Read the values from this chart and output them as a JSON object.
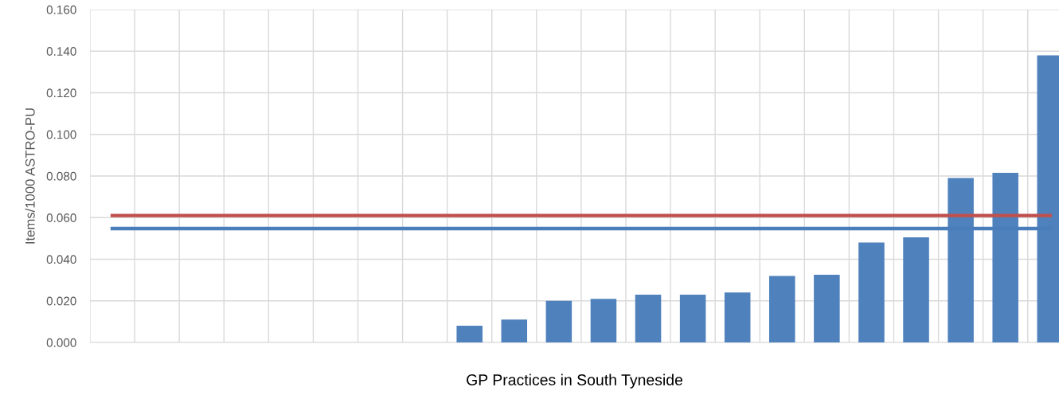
{
  "chart_data": {
    "type": "bar",
    "xlabel": "GP Practices in South Tyneside",
    "ylabel": "Items/1000 ASTRO-PU",
    "categories": [
      null,
      null,
      null,
      null,
      null,
      null,
      null,
      null,
      null,
      null,
      null,
      null,
      null,
      null,
      null,
      null,
      null,
      null,
      null,
      null,
      null,
      null
    ],
    "values": [
      null,
      null,
      null,
      null,
      null,
      null,
      null,
      null,
      0.008,
      0.011,
      0.02,
      0.021,
      0.023,
      0.023,
      0.024,
      0.032,
      0.0325,
      0.048,
      0.0505,
      0.079,
      0.0815,
      0.138
    ],
    "color": "#4f81bd",
    "ylim": [
      0,
      0.16
    ],
    "yticks": [
      {
        "value": 0,
        "label": "0.000"
      },
      {
        "value": 0.02,
        "label": "0.020"
      },
      {
        "value": 0.04,
        "label": "0.040"
      },
      {
        "value": 0.06,
        "label": "0.060"
      },
      {
        "value": 0.08,
        "label": "0.080"
      },
      {
        "value": 0.1,
        "label": "0.100"
      },
      {
        "value": 0.12,
        "label": "0.120"
      },
      {
        "value": 0.14,
        "label": "0.140"
      },
      {
        "value": 0.16,
        "label": "0.160"
      }
    ],
    "ref_lines": [
      {
        "axis": "y",
        "value": 0.061,
        "color": "#c0504d"
      },
      {
        "axis": "y",
        "value": 0.0547,
        "color": "#4a7ebb"
      }
    ],
    "grid": true,
    "tick_labels": "y"
  }
}
